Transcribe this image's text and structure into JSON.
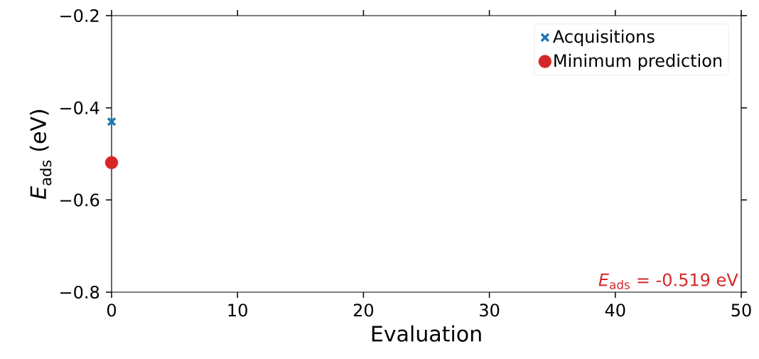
{
  "chart_data": {
    "type": "scatter",
    "xlabel": "Evaluation",
    "ylabel": "*E*$_{ads}$ (eV)",
    "x": [
      0
    ],
    "series": [
      {
        "name": "Acquisitions",
        "color": "#1f77b4",
        "values": [
          -0.43
        ],
        "marker": "cross"
      },
      {
        "name": "Minimum prediction",
        "color": "#d62728",
        "values": [
          -0.519
        ],
        "marker": "circle"
      }
    ],
    "xlim": [
      0,
      50
    ],
    "xticks": [
      0,
      10,
      20,
      30,
      40,
      50
    ],
    "ylim": [
      -0.8,
      -0.2
    ],
    "yticks": [
      {
        "value": -0.8,
        "label": "−0.8"
      },
      {
        "value": -0.6,
        "label": "−0.6"
      },
      {
        "value": -0.4,
        "label": "−0.4"
      },
      {
        "value": -0.2,
        "label": "−0.2"
      }
    ],
    "legend": "top right",
    "grid": false,
    "annotations": [
      "*E*$_{ads}$ = -0.519 eV"
    ]
  }
}
